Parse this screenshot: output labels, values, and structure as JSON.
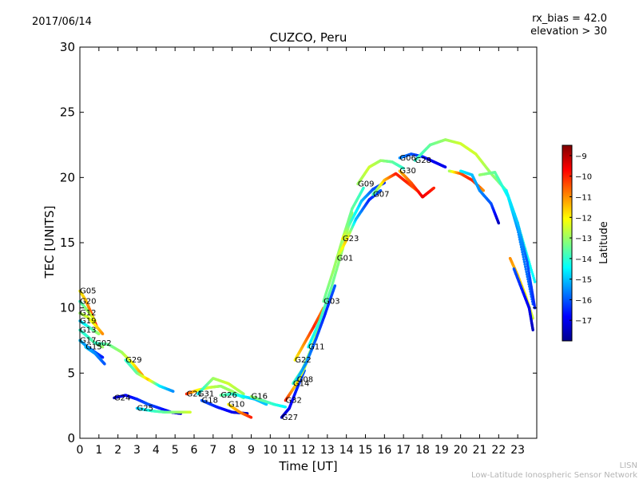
{
  "header": {
    "date": "2017/06/14",
    "rx_bias": "rx_bias = 42.0",
    "elevation": "elevation > 30"
  },
  "footer": {
    "line1": "LISN",
    "line2": "Low-Latitude Ionospheric Sensor Network"
  },
  "colors": {
    "jet": [
      "#00008f",
      "#0000ff",
      "#0080ff",
      "#00ffff",
      "#80ff80",
      "#ffff00",
      "#ff8000",
      "#ff0000",
      "#800000"
    ]
  },
  "chart_data": {
    "type": "scatter",
    "title": "CUZCO, Peru",
    "xlabel": "Time [UT]",
    "ylabel": "TEC [UNITS]",
    "xlim": [
      0,
      24
    ],
    "ylim": [
      0,
      30
    ],
    "x_ticks": [
      "0",
      "1",
      "2",
      "3",
      "4",
      "5",
      "6",
      "7",
      "8",
      "9",
      "10",
      "11",
      "12",
      "13",
      "14",
      "15",
      "16",
      "17",
      "18",
      "19",
      "20",
      "21",
      "22",
      "23"
    ],
    "y_ticks": [
      "0",
      "5",
      "10",
      "15",
      "20",
      "25",
      "30"
    ],
    "grid": false,
    "colorbar": {
      "label": "Latitude",
      "range": [
        -18,
        -8.5
      ],
      "ticks": [
        "−9",
        "−10",
        "−11",
        "−12",
        "−13",
        "−14",
        "−15",
        "−16",
        "−17"
      ]
    },
    "series": [
      {
        "name": "G05",
        "x": [
          0.0,
          0.3,
          0.6,
          0.9
        ],
        "y": [
          11.3,
          10.6,
          9.6,
          8.5
        ],
        "lat": [
          -12,
          -11.5,
          -10.5,
          -9.5
        ]
      },
      {
        "name": "G20",
        "x": [
          0.0,
          0.4,
          0.8
        ],
        "y": [
          10.5,
          9.8,
          9.0
        ],
        "lat": [
          -14,
          -13,
          -12
        ]
      },
      {
        "name": "G12",
        "x": [
          0.0,
          0.4,
          0.8,
          1.2
        ],
        "y": [
          9.6,
          9.3,
          8.7,
          8.0
        ],
        "lat": [
          -13,
          -12.5,
          -12,
          -11
        ]
      },
      {
        "name": "G19",
        "x": [
          0.0,
          0.5,
          1.0
        ],
        "y": [
          9.0,
          8.5,
          8.0
        ],
        "lat": [
          -15,
          -14,
          -13
        ]
      },
      {
        "name": "G13",
        "x": [
          0.0,
          0.4,
          0.8,
          1.2
        ],
        "y": [
          8.3,
          7.8,
          7.3,
          7.0
        ],
        "lat": [
          -14,
          -14,
          -13.5,
          -13
        ]
      },
      {
        "name": "G17",
        "x": [
          0.0,
          0.4,
          0.8,
          1.2
        ],
        "y": [
          7.5,
          7.0,
          6.6,
          6.2
        ],
        "lat": [
          -15,
          -15.5,
          -16,
          -16.5
        ]
      },
      {
        "name": "G15",
        "x": [
          0.3,
          0.8,
          1.3
        ],
        "y": [
          7.0,
          6.5,
          5.7
        ],
        "lat": [
          -15,
          -15.5,
          -16
        ]
      },
      {
        "name": "G02",
        "x": [
          0.8,
          1.5,
          2.2,
          2.8,
          3.3
        ],
        "y": [
          7.3,
          7.2,
          6.6,
          5.7,
          4.8
        ],
        "lat": [
          -14,
          -13.5,
          -13,
          -12,
          -11
        ]
      },
      {
        "name": "G29",
        "x": [
          2.4,
          3.0,
          3.6,
          4.2,
          4.9
        ],
        "y": [
          6.0,
          5.0,
          4.5,
          4.0,
          3.6
        ],
        "lat": [
          -14,
          -13.5,
          -11.5,
          -14.5,
          -15.5
        ]
      },
      {
        "name": "G24",
        "x": [
          1.8,
          2.4,
          3.0,
          3.6,
          4.2,
          4.8,
          5.3
        ],
        "y": [
          3.1,
          3.3,
          3.0,
          2.6,
          2.3,
          2.0,
          1.9
        ],
        "lat": [
          -17.5,
          -17,
          -16.5,
          -16,
          -16.5,
          -17,
          -17.5
        ]
      },
      {
        "name": "G25",
        "x": [
          3.0,
          3.8,
          4.5,
          5.2,
          5.8
        ],
        "y": [
          2.3,
          2.1,
          2.0,
          2.0,
          2.0
        ],
        "lat": [
          -15,
          -14,
          -13.5,
          -13,
          -12.5
        ]
      },
      {
        "name": "G21",
        "x": [
          5.6,
          6.2,
          6.8,
          7.4,
          8.0,
          8.6
        ],
        "y": [
          3.4,
          3.7,
          3.9,
          4.0,
          3.6,
          3.1
        ],
        "lat": [
          -10,
          -12,
          -12.5,
          -13,
          -13,
          -13.5
        ]
      },
      {
        "name": "G31",
        "x": [
          6.2,
          7.0,
          7.8,
          8.6
        ],
        "y": [
          3.4,
          4.6,
          4.2,
          3.4
        ],
        "lat": [
          -14.5,
          -13,
          -12.5,
          -13
        ]
      },
      {
        "name": "G18",
        "x": [
          6.4,
          7.2,
          8.0,
          8.8
        ],
        "y": [
          2.9,
          2.4,
          2.0,
          1.9
        ],
        "lat": [
          -16,
          -16.5,
          -17,
          -17.5
        ]
      },
      {
        "name": "G26",
        "x": [
          7.4,
          8.0,
          8.6,
          9.2,
          9.8
        ],
        "y": [
          3.3,
          3.4,
          3.2,
          3.0,
          2.6
        ],
        "lat": [
          -13.5,
          -14,
          -14.5,
          -15,
          -15
        ]
      },
      {
        "name": "G10",
        "x": [
          7.8,
          8.4,
          9.0
        ],
        "y": [
          2.6,
          2.0,
          1.6
        ],
        "lat": [
          -12,
          -11,
          -10
        ]
      },
      {
        "name": "G16",
        "x": [
          9.0,
          9.6,
          10.2,
          10.8
        ],
        "y": [
          3.2,
          2.9,
          2.6,
          2.4
        ],
        "lat": [
          -13,
          -13.5,
          -14,
          -14.5
        ]
      },
      {
        "name": "G27",
        "x": [
          10.6,
          11.0,
          11.4,
          11.8
        ],
        "y": [
          1.6,
          2.3,
          3.8,
          5.2
        ],
        "lat": [
          -17.5,
          -17,
          -16.5,
          -16
        ]
      },
      {
        "name": "G32",
        "x": [
          10.8,
          11.3,
          11.8,
          12.2
        ],
        "y": [
          2.9,
          4.0,
          5.4,
          7.0
        ],
        "lat": [
          -10,
          -11.5,
          -12.5,
          -13
        ]
      },
      {
        "name": "G14",
        "x": [
          11.2,
          11.7,
          12.2,
          12.7
        ],
        "y": [
          4.2,
          5.3,
          7.0,
          9.0
        ],
        "lat": [
          -14,
          -13.5,
          -13,
          -12.5
        ]
      },
      {
        "name": "G08",
        "x": [
          11.4,
          11.9,
          12.4,
          12.9,
          13.4
        ],
        "y": [
          4.5,
          5.8,
          7.6,
          9.6,
          11.7
        ],
        "lat": [
          -15,
          -15.5,
          -16,
          -16.5,
          -16
        ]
      },
      {
        "name": "G22",
        "x": [
          11.3,
          11.8,
          12.3,
          12.8
        ],
        "y": [
          6.0,
          7.3,
          8.6,
          10.0
        ],
        "lat": [
          -12,
          -11,
          -10,
          -11
        ]
      },
      {
        "name": "G11",
        "x": [
          12.0,
          12.6,
          13.2,
          13.8,
          14.3
        ],
        "y": [
          7.0,
          9.0,
          11.5,
          14.5,
          17.3
        ],
        "lat": [
          -14.5,
          -14,
          -13.5,
          -13,
          -13
        ]
      },
      {
        "name": "G03",
        "x": [
          12.8,
          13.3,
          13.8,
          14.3,
          14.9
        ],
        "y": [
          10.5,
          12.8,
          15.3,
          17.6,
          19.2
        ],
        "lat": [
          -13.5,
          -13,
          -13,
          -13.5,
          -14
        ]
      },
      {
        "name": "G01",
        "x": [
          13.5,
          14.0,
          14.5,
          15.2,
          15.8
        ],
        "y": [
          13.8,
          15.2,
          16.8,
          18.3,
          19.0
        ],
        "lat": [
          -13,
          -11.5,
          -15,
          -16.5,
          -16
        ]
      },
      {
        "name": "G23",
        "x": [
          13.8,
          14.3,
          14.8,
          15.4,
          16.0
        ],
        "y": [
          15.3,
          16.8,
          18.2,
          19.1,
          19.6
        ],
        "lat": [
          -12,
          -14,
          -15,
          -16,
          -16.5
        ]
      },
      {
        "name": "G09",
        "x": [
          14.6,
          15.2,
          15.8,
          16.4,
          17.0
        ],
        "y": [
          19.5,
          20.8,
          21.3,
          21.2,
          20.7
        ],
        "lat": [
          -13,
          -12.5,
          -13,
          -13.5,
          -14
        ]
      },
      {
        "name": "G07",
        "x": [
          15.4,
          16.0,
          16.6,
          17.2,
          17.8
        ],
        "y": [
          18.7,
          19.8,
          20.3,
          19.6,
          18.9
        ],
        "lat": [
          -14,
          -11.5,
          -10,
          -10,
          -11
        ]
      },
      {
        "name": "G30",
        "x": [
          16.8,
          17.4,
          18.0,
          18.6
        ],
        "y": [
          20.5,
          19.6,
          18.5,
          19.2
        ],
        "lat": [
          -11.5,
          -10.5,
          -9.5,
          -10
        ]
      },
      {
        "name": "G06",
        "x": [
          16.8,
          17.4,
          18.0,
          18.6,
          19.2
        ],
        "y": [
          21.5,
          21.8,
          21.6,
          21.2,
          20.8
        ],
        "lat": [
          -15.5,
          -16,
          -16.5,
          -17,
          -17
        ]
      },
      {
        "name": "G28",
        "x": [
          17.6,
          18.4,
          19.2,
          20.0,
          20.8,
          21.6,
          22.4,
          23.0,
          23.9
        ],
        "y": [
          21.3,
          22.5,
          22.9,
          22.6,
          21.8,
          20.3,
          19.0,
          16.5,
          12.0
        ],
        "lat": [
          -14,
          -13.5,
          -13,
          -12.5,
          -12.5,
          -13,
          -13.5,
          -14,
          -14.5
        ]
      },
      {
        "name": "",
        "x": [
          19.4,
          20.0,
          20.6,
          21.2
        ],
        "y": [
          20.5,
          20.3,
          19.8,
          19.0
        ],
        "lat": [
          -13,
          -10.5,
          -10,
          -11
        ]
      },
      {
        "name": "",
        "x": [
          20.0,
          20.6,
          21.0,
          21.6,
          22.0
        ],
        "y": [
          20.5,
          20.2,
          19.0,
          18.0,
          16.5
        ],
        "lat": [
          -14.5,
          -15,
          -15.5,
          -16,
          -17.5
        ]
      },
      {
        "name": "",
        "x": [
          21.0,
          21.8,
          22.5,
          23.0,
          23.8
        ],
        "y": [
          20.2,
          20.4,
          18.5,
          16.0,
          10.3
        ],
        "lat": [
          -13,
          -13.5,
          -14.5,
          -15.5,
          -16
        ]
      },
      {
        "name": "",
        "x": [
          22.4,
          23.0,
          23.5,
          23.9
        ],
        "y": [
          19.0,
          16.5,
          13.5,
          10.0
        ],
        "lat": [
          -14.5,
          -15,
          -16,
          -16.5
        ]
      },
      {
        "name": "",
        "x": [
          22.6,
          23.0,
          23.4,
          23.8
        ],
        "y": [
          13.8,
          12.5,
          11.0,
          9.2
        ],
        "lat": [
          -11,
          -11.5,
          -12,
          -12.5
        ]
      },
      {
        "name": "",
        "x": [
          22.8,
          23.2,
          23.6,
          23.8
        ],
        "y": [
          13.0,
          11.5,
          10.0,
          8.3
        ],
        "lat": [
          -16,
          -16.5,
          -17,
          -17.5
        ]
      }
    ]
  }
}
